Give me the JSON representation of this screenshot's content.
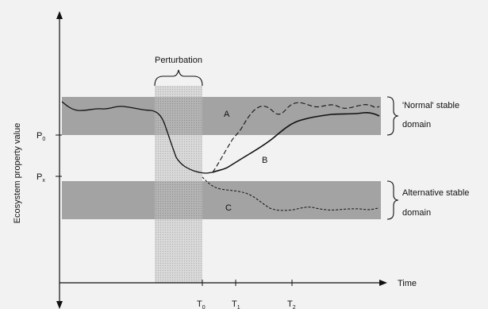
{
  "colors": {
    "background": "#f2f2f2",
    "band": "#a3a3a3",
    "perturbation": "#d6d6d6",
    "ink": "#111111"
  },
  "labels": {
    "perturbation": "Perturbation",
    "y_axis": "Ecosystem property value",
    "x_axis": "Time",
    "p0": "P",
    "p0_sub": "0",
    "px": "P",
    "px_sub": "x",
    "t0": "T",
    "t0_sub": "0",
    "t1": "T",
    "t1_sub": "1",
    "t2": "T",
    "t2_sub": "2",
    "curve_a": "A",
    "curve_b": "B",
    "curve_c": "C",
    "normal_domain_line1": "'Normal' stable",
    "normal_domain_line2": "domain",
    "alt_domain_line1": "Alternative stable",
    "alt_domain_line2": "domain"
  }
}
